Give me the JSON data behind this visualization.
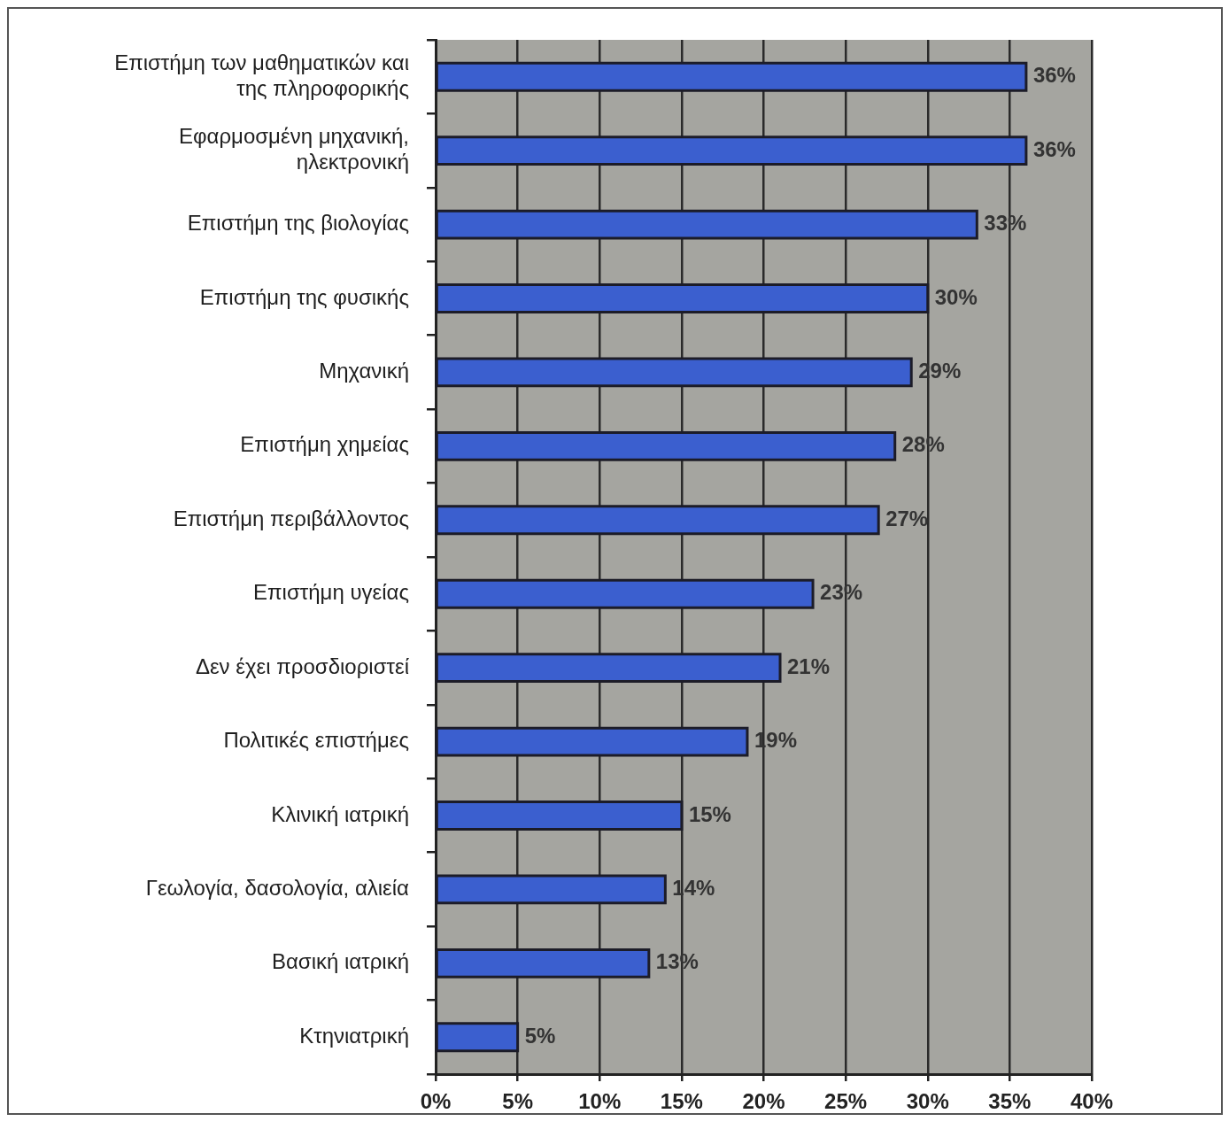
{
  "chart_data": {
    "type": "bar",
    "orientation": "horizontal",
    "categories": [
      "Επιστήμη των μαθηματικών και της πληροφορικής",
      "Εφαρμοσμένη μηχανική, ηλεκτρονική",
      "Επιστήμη της βιολογίας",
      "Επιστήμη της φυσικής",
      "Μηχανική",
      "Επιστήμη χημείας",
      "Επιστήμη περιβάλλοντος",
      "Επιστήμη υγείας",
      "Δεν έχει προσδιοριστεί",
      "Πολιτικές επιστήμες",
      "Κλινική ιατρική",
      "Γεωλογία, δασολογία, αλιεία",
      "Βασική ιατρική",
      "Κτηνιατρική"
    ],
    "values": [
      36,
      36,
      33,
      30,
      29,
      28,
      27,
      23,
      21,
      19,
      15,
      14,
      13,
      5
    ],
    "value_labels": [
      "36%",
      "36%",
      "33%",
      "30%",
      "29%",
      "28%",
      "27%",
      "23%",
      "21%",
      "19%",
      "15%",
      "14%",
      "13%",
      "5%"
    ],
    "color": "#3b5fcf",
    "xlim": [
      0,
      40
    ],
    "xticks": [
      {
        "value": 0,
        "label": "0%"
      },
      {
        "value": 5,
        "label": "5%"
      },
      {
        "value": 10,
        "label": "10%"
      },
      {
        "value": 15,
        "label": "15%"
      },
      {
        "value": 20,
        "label": "20%"
      },
      {
        "value": 25,
        "label": "25%"
      },
      {
        "value": 30,
        "label": "30%"
      },
      {
        "value": 35,
        "label": "35%"
      },
      {
        "value": 40,
        "label": "40%"
      }
    ],
    "grid": "x"
  }
}
